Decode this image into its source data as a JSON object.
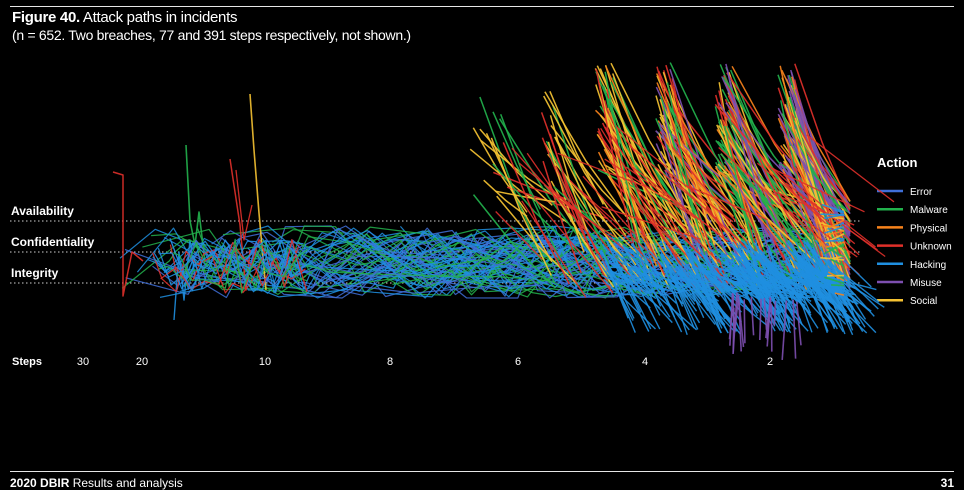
{
  "header": {
    "figure_label": "Figure 40.",
    "title": "Attack paths in incidents",
    "subtitle": "(n = 652. Two breaches, 77 and 391 steps respectively, not shown.)"
  },
  "footer": {
    "brand": "2020 DBIR",
    "section": "Results and analysis",
    "page": "31"
  },
  "chart_data": {
    "type": "line",
    "title": "Attack paths in incidents",
    "x_axis_label": "Steps",
    "x_ticks": [
      "30",
      "20",
      "10",
      "8",
      "6",
      "4",
      "2"
    ],
    "y_levels": [
      "Availability",
      "Confidentiality",
      "Integrity"
    ],
    "legend_title": "Action",
    "legend_position": "right",
    "series": [
      {
        "name": "Error",
        "color": "#3f6fd8"
      },
      {
        "name": "Malware",
        "color": "#22b14c"
      },
      {
        "name": "Physical",
        "color": "#f7821b"
      },
      {
        "name": "Unknown",
        "color": "#e0302a"
      },
      {
        "name": "Hacking",
        "color": "#1f8fe0"
      },
      {
        "name": "Misuse",
        "color": "#7d4fb0"
      },
      {
        "name": "Social",
        "color": "#f5c232"
      }
    ]
  }
}
